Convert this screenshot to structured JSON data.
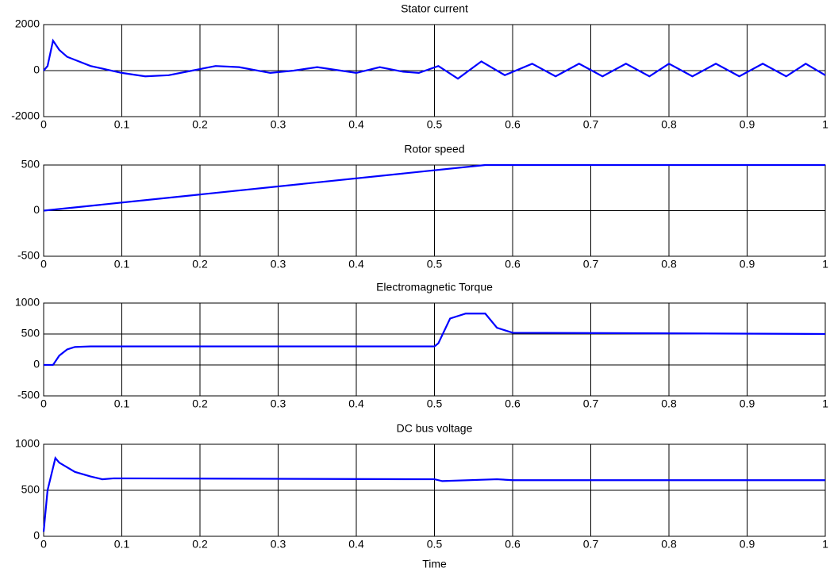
{
  "chart_data": [
    {
      "type": "line",
      "title": "Stator current",
      "xlim": [
        0,
        1
      ],
      "xticks": [
        0,
        0.1,
        0.2,
        0.3,
        0.4,
        0.5,
        0.6,
        0.7,
        0.8,
        0.9,
        1
      ],
      "ylim": [
        -2000,
        2000
      ],
      "yticks": [
        -2000,
        0,
        2000
      ],
      "grid": true,
      "x": [
        0,
        0.005,
        0.012,
        0.02,
        0.03,
        0.045,
        0.06,
        0.08,
        0.1,
        0.13,
        0.16,
        0.19,
        0.22,
        0.25,
        0.29,
        0.32,
        0.35,
        0.38,
        0.4,
        0.43,
        0.46,
        0.48,
        0.505,
        0.53,
        0.56,
        0.59,
        0.625,
        0.655,
        0.685,
        0.715,
        0.745,
        0.775,
        0.8,
        0.83,
        0.86,
        0.89,
        0.92,
        0.95,
        0.975,
        1
      ],
      "series": [
        {
          "color": "#0000ff",
          "values": [
            0,
            200,
            1300,
            900,
            600,
            400,
            200,
            50,
            -100,
            -250,
            -200,
            0,
            200,
            150,
            -100,
            0,
            150,
            0,
            -100,
            150,
            -50,
            -100,
            200,
            -350,
            400,
            -200,
            300,
            -250,
            300,
            -250,
            300,
            -250,
            300,
            -250,
            300,
            -250,
            300,
            -250,
            300,
            -200
          ]
        }
      ]
    },
    {
      "type": "line",
      "title": "Rotor speed",
      "xlim": [
        0,
        1
      ],
      "xticks": [
        0,
        0.1,
        0.2,
        0.3,
        0.4,
        0.5,
        0.6,
        0.7,
        0.8,
        0.9,
        1
      ],
      "ylim": [
        -500,
        500
      ],
      "yticks": [
        -500,
        0,
        500
      ],
      "grid": true,
      "x": [
        0,
        0.565,
        1
      ],
      "series": [
        {
          "color": "#0000ff",
          "values": [
            0,
            500,
            500
          ]
        }
      ]
    },
    {
      "type": "line",
      "title": "Electromagnetic Torque",
      "xlim": [
        0,
        1
      ],
      "xticks": [
        0,
        0.1,
        0.2,
        0.3,
        0.4,
        0.5,
        0.6,
        0.7,
        0.8,
        0.9,
        1
      ],
      "ylim": [
        -500,
        1000
      ],
      "yticks": [
        -500,
        0,
        500,
        1000
      ],
      "grid": true,
      "x": [
        0,
        0.012,
        0.02,
        0.03,
        0.04,
        0.06,
        0.5,
        0.505,
        0.52,
        0.54,
        0.565,
        0.58,
        0.6,
        1
      ],
      "series": [
        {
          "color": "#0000ff",
          "values": [
            0,
            0,
            150,
            250,
            290,
            300,
            300,
            350,
            750,
            830,
            830,
            600,
            520,
            500
          ]
        }
      ]
    },
    {
      "type": "line",
      "title": "DC bus voltage",
      "xlabel": "Time",
      "xlim": [
        0,
        1
      ],
      "xticks": [
        0,
        0.1,
        0.2,
        0.3,
        0.4,
        0.5,
        0.6,
        0.7,
        0.8,
        0.9,
        1
      ],
      "ylim": [
        0,
        1000
      ],
      "yticks": [
        0,
        500,
        1000
      ],
      "grid": true,
      "x": [
        0,
        0.005,
        0.015,
        0.02,
        0.04,
        0.06,
        0.075,
        0.09,
        0.5,
        0.51,
        0.58,
        0.6,
        1
      ],
      "series": [
        {
          "color": "#0000ff",
          "values": [
            50,
            500,
            850,
            800,
            700,
            650,
            620,
            630,
            620,
            600,
            620,
            610,
            610
          ]
        }
      ]
    }
  ]
}
